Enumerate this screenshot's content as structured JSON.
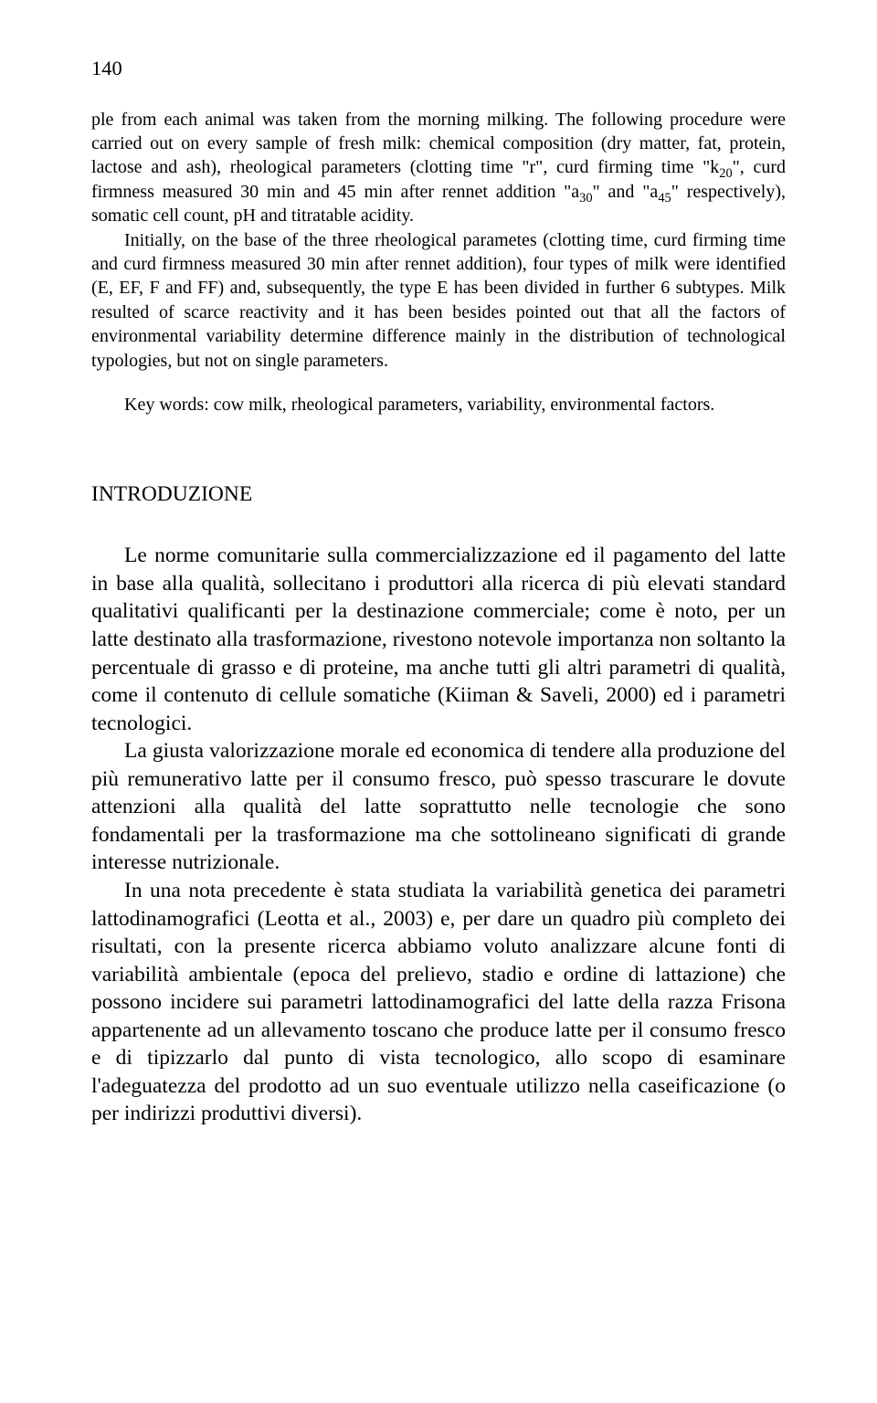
{
  "page_number": "140",
  "abstract": {
    "p1_first": "ple from each animal was taken from the morning milking. The following procedure were carried out on every sample of fresh milk: chemical composition (dry matter, fat, protein, lactose and ash), rheological parameters (clotting time \"r\", curd firming time \"k",
    "p1_sub1": "20",
    "p1_mid1": "\", curd firmness measured 30 min and 45 min after rennet addition \"a",
    "p1_sub2": "30",
    "p1_mid2": "\" and \"a",
    "p1_sub3": "45",
    "p1_end": "\" respectively), somatic cell count, pH and titratable acidity.",
    "p2": "Initially, on the base of the three rheological parametes (clotting time, curd firming time and curd firmness measured 30 min after rennet addition), four types of milk were identified (E, EF, F and FF) and, subsequently, the type E has been divided in further 6 subtypes. Milk resulted of scarce reactivity and it has been besides pointed out that all the factors of environmental variability determine difference mainly in the distribution of technological typologies, but not on single parameters.",
    "keywords": "Key words: cow milk, rheological parameters, variability, environmental factors."
  },
  "section_heading": "INTRODUZIONE",
  "body": {
    "p1": "Le norme comunitarie sulla commercializzazione ed il pagamento del latte in base alla qualità, sollecitano i produttori alla ricerca di più elevati standard qualitativi qualificanti per la destinazione commerciale; come è noto, per un latte destinato alla trasformazione, rivestono notevole importanza non soltanto la percentuale di grasso e di proteine, ma anche tutti gli altri parametri di qualità, come il contenuto di cellule somatiche (Kiiman & Saveli, 2000) ed i parametri tecnologici.",
    "p2": "La giusta valorizzazione morale ed economica di tendere alla produzione del più remunerativo latte per il consumo fresco, può spesso trascurare le dovute attenzioni alla qualità del latte soprattutto nelle tecnologie che sono fondamentali per la trasformazione ma che sottolineano significati di grande interesse nutrizionale.",
    "p3": "In una nota precedente è stata studiata la variabilità genetica dei parametri lattodinamografici (Leotta et al., 2003) e, per dare un quadro più completo dei risultati, con la presente ricerca abbiamo voluto analizzare alcune fonti di variabilità ambientale (epoca del prelievo, stadio e ordine di lattazione) che possono incidere sui parametri lattodinamografici del latte della razza Frisona appartenente ad un allevamento toscano che produce latte per il consumo fresco e di tipizzarlo dal punto di vista tecnologico, allo scopo di esaminare l'adeguatezza del prodotto ad un suo eventuale utilizzo nella caseificazione (o per indirizzi produttivi diversi)."
  }
}
